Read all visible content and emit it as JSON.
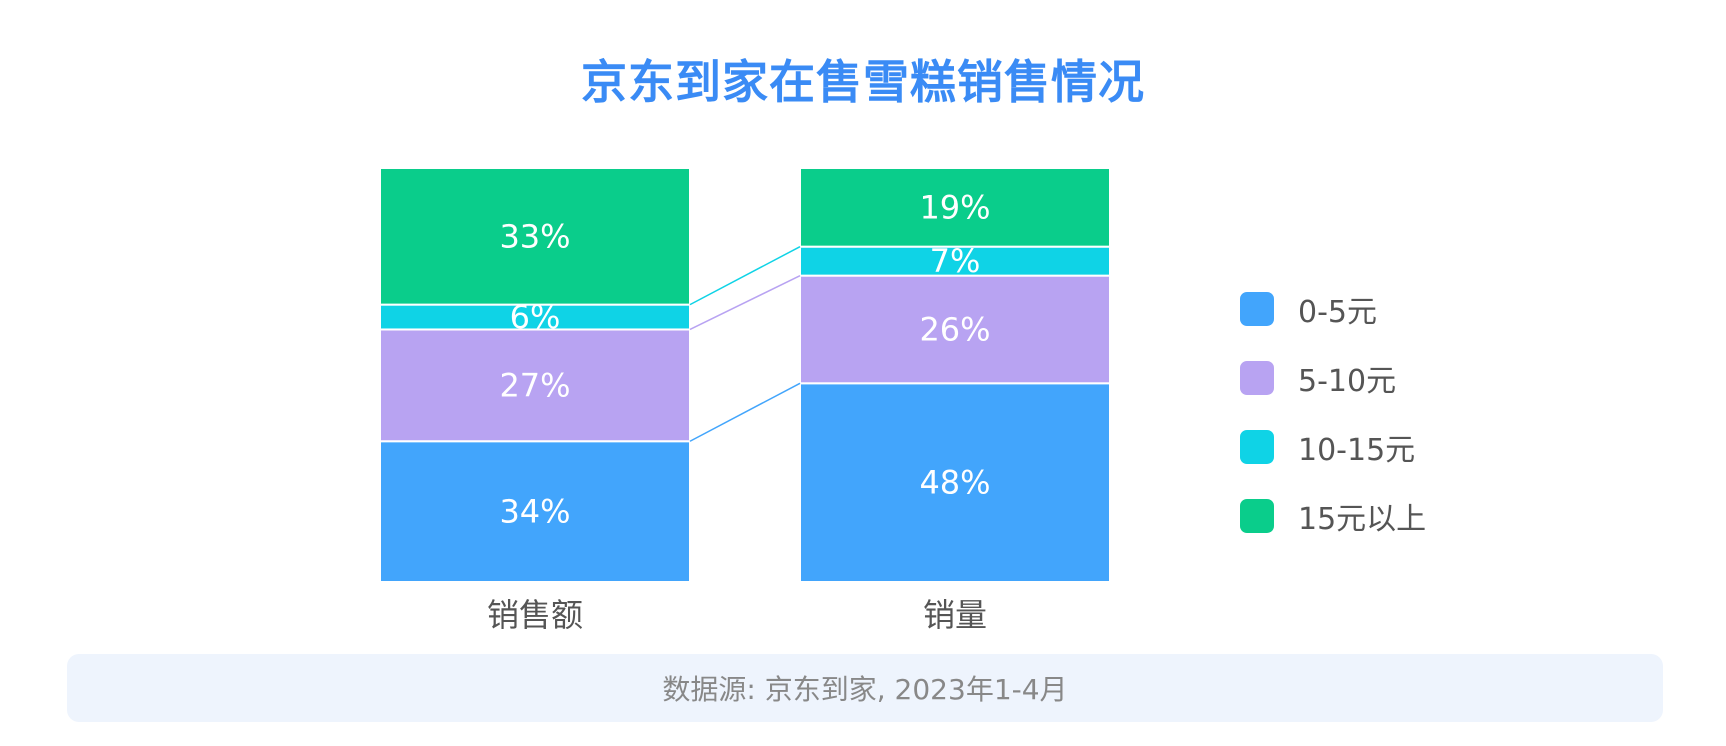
{
  "title": "京东到家在售雪糕销售情况",
  "chart_data": {
    "type": "bar",
    "stacked": true,
    "normalized": true,
    "title": "京东到家在售雪糕销售情况",
    "categories": [
      "销售额",
      "销量"
    ],
    "series": [
      {
        "name": "0-5元",
        "values": [
          34,
          48
        ],
        "labels": [
          "34%",
          "48%"
        ],
        "color": "#42a5fc"
      },
      {
        "name": "5-10元",
        "values": [
          27,
          26
        ],
        "labels": [
          "27%",
          "26%"
        ],
        "color": "#b8a3f2"
      },
      {
        "name": "10-15元",
        "values": [
          6,
          7
        ],
        "labels": [
          "6%",
          "7%"
        ],
        "color": "#0fd3e6"
      },
      {
        "name": "15元以上",
        "values": [
          33,
          19
        ],
        "labels": [
          "33%",
          "19%"
        ],
        "color": "#0acd8b"
      }
    ],
    "ylim": [
      0,
      100
    ],
    "grid": false,
    "legend_position": "right"
  },
  "legend": [
    {
      "label": "0-5元",
      "color": "#42a5fc"
    },
    {
      "label": "5-10元",
      "color": "#b8a3f2"
    },
    {
      "label": "10-15元",
      "color": "#0fd3e6"
    },
    {
      "label": "15元以上",
      "color": "#0acd8b"
    }
  ],
  "source": "数据源: 京东到家, 2023年1-4月"
}
